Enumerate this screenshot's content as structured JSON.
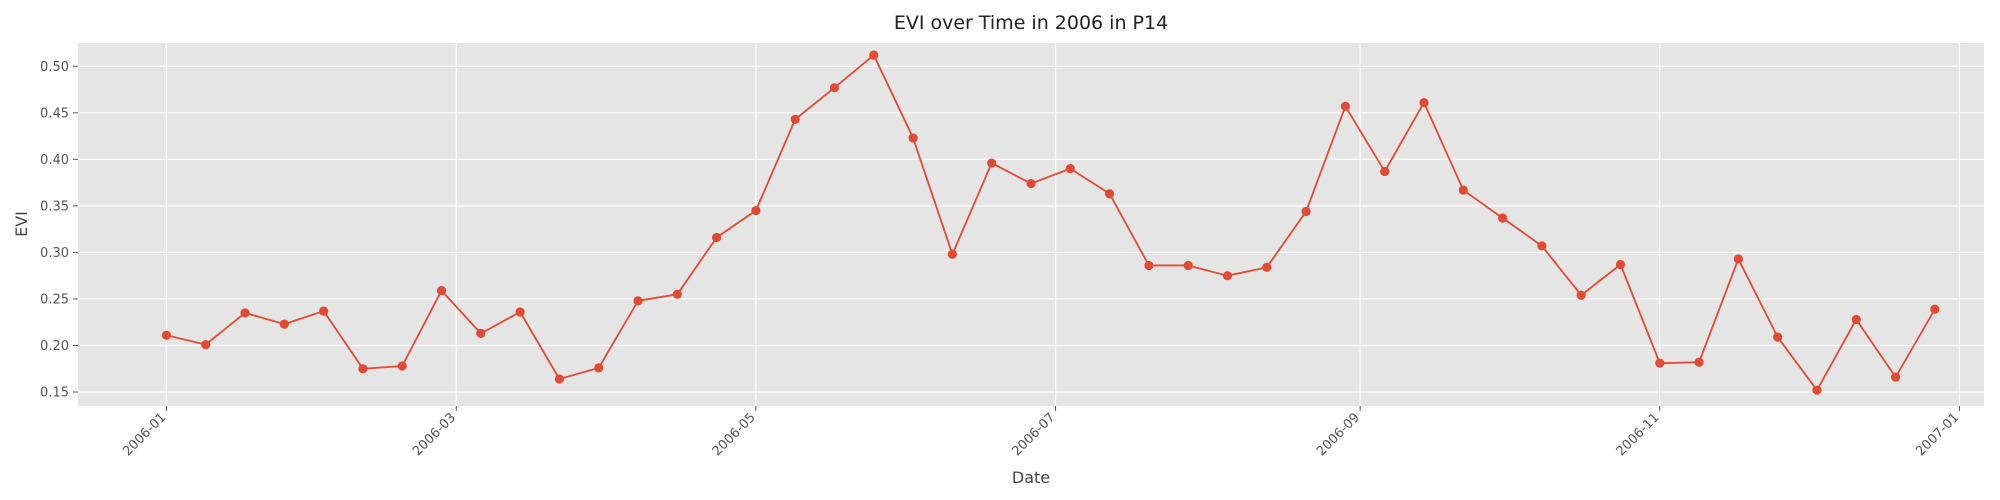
{
  "chart_data": {
    "type": "line",
    "title": "EVI over Time in 2006 in P14",
    "xlabel": "Date",
    "ylabel": "EVI",
    "xlim": [
      "2005-12-14",
      "2007-01-06"
    ],
    "ylim": [
      0.135,
      0.525
    ],
    "grid": true,
    "colors": {
      "plot_bg": "#E5E5E5",
      "grid": "#FFFFFF",
      "series": "#E24A33",
      "text": "#555555"
    },
    "x_ticks": [
      {
        "date": "2006-01-01",
        "label": "2006-01"
      },
      {
        "date": "2006-03-01",
        "label": "2006-03"
      },
      {
        "date": "2006-05-01",
        "label": "2006-05"
      },
      {
        "date": "2006-07-01",
        "label": "2006-07"
      },
      {
        "date": "2006-09-01",
        "label": "2006-09"
      },
      {
        "date": "2006-11-01",
        "label": "2006-11"
      },
      {
        "date": "2007-01-01",
        "label": "2007-01"
      }
    ],
    "y_ticks": [
      "0.15",
      "0.20",
      "0.25",
      "0.30",
      "0.35",
      "0.40",
      "0.45",
      "0.50"
    ],
    "series": [
      {
        "points": [
          [
            "2006-01-01",
            0.211
          ],
          [
            "2006-01-09",
            0.201
          ],
          [
            "2006-01-17",
            0.235
          ],
          [
            "2006-01-25",
            0.223
          ],
          [
            "2006-02-02",
            0.237
          ],
          [
            "2006-02-10",
            0.175
          ],
          [
            "2006-02-18",
            0.178
          ],
          [
            "2006-02-26",
            0.259
          ],
          [
            "2006-03-06",
            0.213
          ],
          [
            "2006-03-14",
            0.236
          ],
          [
            "2006-03-22",
            0.164
          ],
          [
            "2006-03-30",
            0.176
          ],
          [
            "2006-04-07",
            0.248
          ],
          [
            "2006-04-15",
            0.255
          ],
          [
            "2006-04-23",
            0.316
          ],
          [
            "2006-05-01",
            0.345
          ],
          [
            "2006-05-09",
            0.443
          ],
          [
            "2006-05-17",
            0.477
          ],
          [
            "2006-05-25",
            0.512
          ],
          [
            "2006-06-02",
            0.423
          ],
          [
            "2006-06-10",
            0.298
          ],
          [
            "2006-06-18",
            0.396
          ],
          [
            "2006-06-26",
            0.374
          ],
          [
            "2006-07-04",
            0.39
          ],
          [
            "2006-07-12",
            0.363
          ],
          [
            "2006-07-20",
            0.286
          ],
          [
            "2006-07-28",
            0.286
          ],
          [
            "2006-08-05",
            0.275
          ],
          [
            "2006-08-13",
            0.284
          ],
          [
            "2006-08-21",
            0.344
          ],
          [
            "2006-08-29",
            0.457
          ],
          [
            "2006-09-06",
            0.387
          ],
          [
            "2006-09-14",
            0.461
          ],
          [
            "2006-09-22",
            0.367
          ],
          [
            "2006-09-30",
            0.337
          ],
          [
            "2006-10-08",
            0.307
          ],
          [
            "2006-10-16",
            0.254
          ],
          [
            "2006-10-24",
            0.287
          ],
          [
            "2006-11-01",
            0.181
          ],
          [
            "2006-11-09",
            0.182
          ],
          [
            "2006-11-17",
            0.293
          ],
          [
            "2006-11-25",
            0.209
          ],
          [
            "2006-12-03",
            0.152
          ],
          [
            "2006-12-11",
            0.228
          ],
          [
            "2006-12-19",
            0.166
          ],
          [
            "2006-12-27",
            0.239
          ]
        ]
      }
    ]
  }
}
